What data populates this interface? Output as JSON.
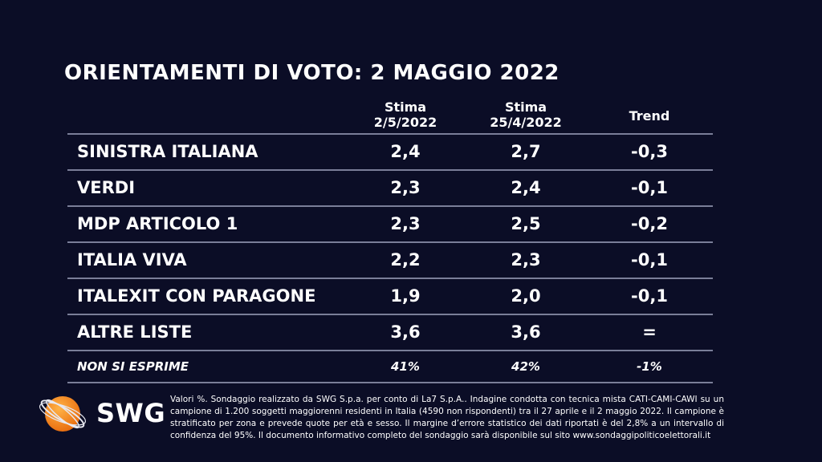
{
  "chart_data": {
    "type": "table",
    "title": "ORIENTAMENTI DI VOTO: 2 MAGGIO 2022",
    "columns": [
      {
        "line1": "Stima",
        "line2": "2/5/2022"
      },
      {
        "line1": "Stima",
        "line2": "25/4/2022"
      },
      {
        "line1": "Trend",
        "line2": ""
      }
    ],
    "rows": [
      {
        "party": "SINISTRA ITALIANA",
        "current": "2,4",
        "previous": "2,7",
        "trend": "-0,3"
      },
      {
        "party": "VERDI",
        "current": "2,3",
        "previous": "2,4",
        "trend": "-0,1"
      },
      {
        "party": "MDP ARTICOLO 1",
        "current": "2,3",
        "previous": "2,5",
        "trend": "-0,2"
      },
      {
        "party": "ITALIA VIVA",
        "current": "2,2",
        "previous": "2,3",
        "trend": "-0,1"
      },
      {
        "party": "ITALEXIT CON PARAGONE",
        "current": "1,9",
        "previous": "2,0",
        "trend": "-0,1"
      },
      {
        "party": "ALTRE LISTE",
        "current": "3,6",
        "previous": "3,6",
        "trend": "="
      }
    ],
    "non_response": {
      "label": "NON SI ESPRIME",
      "current": "41%",
      "previous": "42%",
      "trend": "-1%"
    }
  },
  "logo": {
    "text": "SWG",
    "accent": "#f28c1e"
  },
  "footnote": "Valori %. Sondaggio realizzato da SWG S.p.a. per conto di La7 S.p.A.. Indagine condotta con tecnica mista CATI-CAMI-CAWI su un campione di 1.200 soggetti maggiorenni residenti in Italia (4590 non rispondenti) tra il 27 aprile e il 2 maggio 2022. Il campione è stratificato per zona e prevede quote per età e sesso. Il margine d’errore statistico dei dati riportati è del 2,8% a un intervallo di confidenza del 95%. Il documento informativo completo del sondaggio sarà disponibile sul sito www.sondaggipoliticoelettorali.it"
}
